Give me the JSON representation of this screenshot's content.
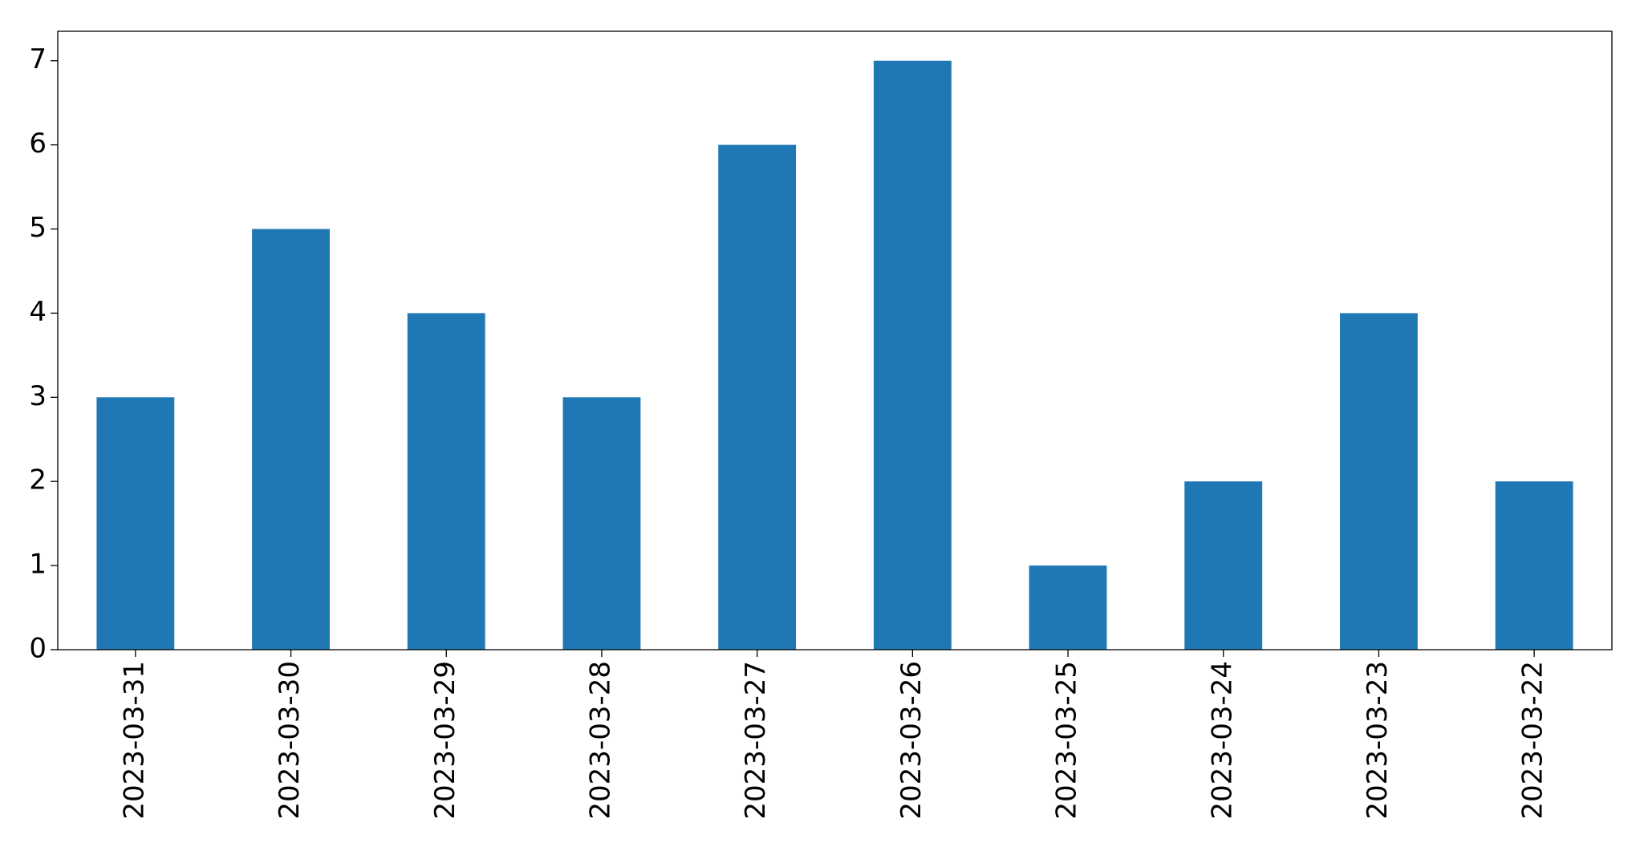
{
  "chart_data": {
    "type": "bar",
    "categories": [
      "2023-03-31",
      "2023-03-30",
      "2023-03-29",
      "2023-03-28",
      "2023-03-27",
      "2023-03-26",
      "2023-03-25",
      "2023-03-24",
      "2023-03-23",
      "2023-03-22"
    ],
    "values": [
      3,
      5,
      4,
      3,
      6,
      7,
      1,
      2,
      4,
      2
    ],
    "color": "#1f77b4",
    "ylim": [
      0,
      7.35
    ],
    "yticks": [
      0,
      1,
      2,
      3,
      4,
      5,
      6,
      7
    ],
    "grid": false
  }
}
